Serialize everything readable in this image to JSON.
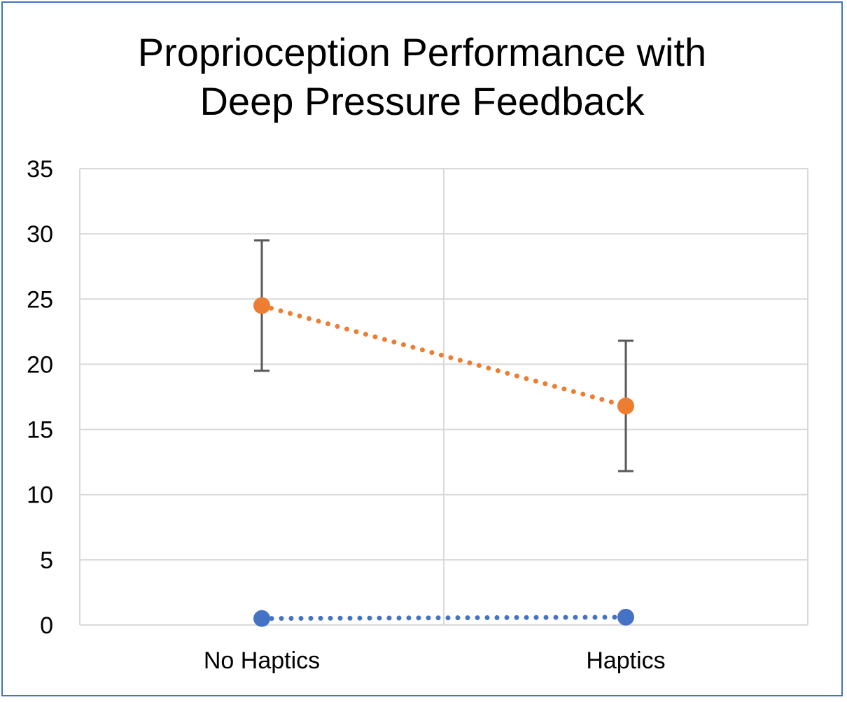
{
  "chart_data": {
    "type": "line",
    "title": "Proprioception Performance with Deep Pressure Feedback",
    "title_lines": [
      "Proprioception Performance with",
      "Deep Pressure Feedback"
    ],
    "categories": [
      "No Haptics",
      "Haptics"
    ],
    "ylim": [
      0,
      35
    ],
    "yticks": [
      "0",
      "5",
      "10",
      "15",
      "20",
      "25",
      "30",
      "35"
    ],
    "xlabel": "",
    "ylabel": "",
    "grid": true,
    "legend": "none",
    "series": [
      {
        "values": [
          24.5,
          16.8
        ],
        "error": [
          5.0,
          5.0
        ],
        "color": "#ED7D31",
        "line_style": "dotted"
      },
      {
        "values": [
          0.5,
          0.6
        ],
        "color": "#4472C4",
        "line_style": "dotted"
      }
    ],
    "colors": {
      "grid": "#D9D9D9",
      "error_bar": "#595959",
      "frame": "#4472C4"
    }
  }
}
